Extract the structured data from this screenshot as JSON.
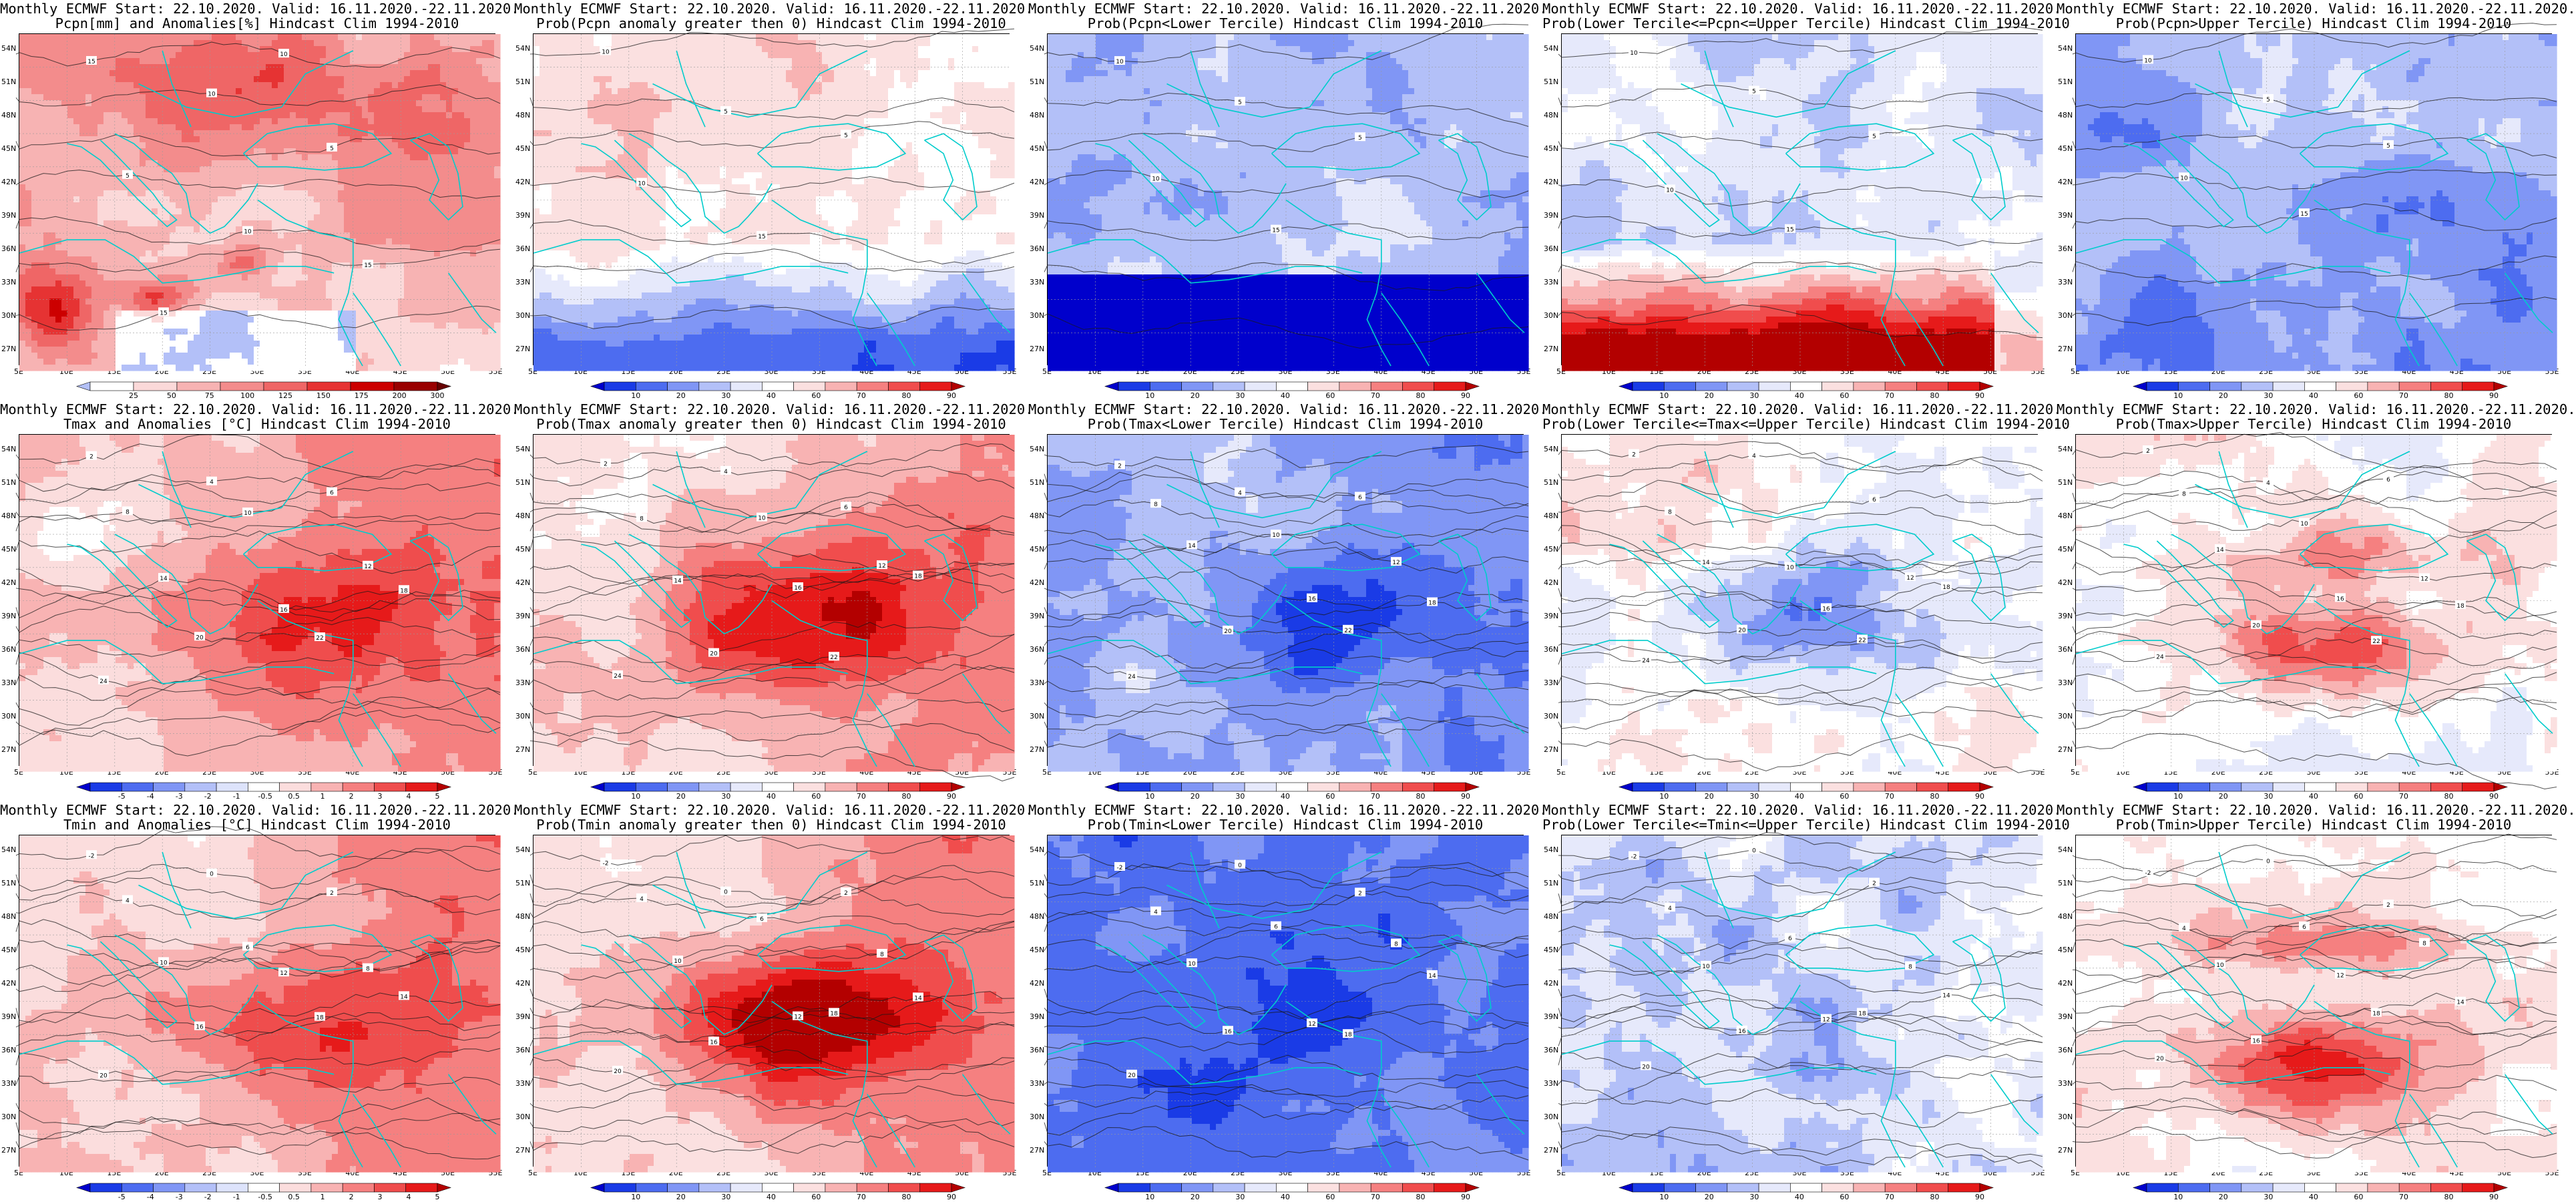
{
  "panels": [
    {
      "line1": "Monthly ECMWF Start: 22.10.2020. Valid: 16.11.2020.-22.11.2020.",
      "line2": "Pcpn[mm] and Anomalies[%] Hindcast Clim 1994-2010",
      "scale": "anom_pcpn",
      "extremes": "wet",
      "style": "pcpn_anom",
      "contour_labels": [
        "15",
        "10",
        "5",
        "5",
        "10",
        "15",
        "15",
        "10"
      ]
    },
    {
      "line1": "Monthly ECMWF Start: 22.10.2020. Valid: 16.11.2020.-22.11.2020.",
      "line2": "Prob(Pcpn anomaly greater then 0) Hindcast Clim 1994-2010",
      "scale": "prob",
      "style": "prob_pcpn_gt0",
      "contour_labels": [
        "10",
        "5",
        "5",
        "10",
        "15"
      ]
    },
    {
      "line1": "Monthly ECMWF Start: 22.10.2020. Valid: 16.11.2020.-22.11.2020.",
      "line2": "Prob(Pcpn<Lower Tercile) Hindcast Clim 1994-2010",
      "scale": "prob",
      "style": "prob_pcpn_lower",
      "contour_labels": [
        "10",
        "5",
        "5",
        "10",
        "15"
      ]
    },
    {
      "line1": "Monthly ECMWF Start: 22.10.2020. Valid: 16.11.2020.-22.11.2020.",
      "line2": "Prob(Lower Tercile<=Pcpn<=Upper Tercile) Hindcast Clim 1994-2010",
      "scale": "prob",
      "style": "prob_pcpn_mid",
      "contour_labels": [
        "10",
        "5",
        "5",
        "10",
        "15"
      ]
    },
    {
      "line1": "Monthly ECMWF Start: 22.10.2020. Valid: 16.11.2020.-22.11.2020.",
      "line2": "Prob(Pcpn>Upper Tercile) Hindcast Clim 1994-2010",
      "scale": "prob",
      "style": "prob_pcpn_upper",
      "contour_labels": [
        "10",
        "5",
        "5",
        "10",
        "15"
      ]
    },
    {
      "line1": "Monthly ECMWF Start: 22.10.2020. Valid: 16.11.2020.-22.11.2020.",
      "line2": "Tmax and Anomalies [°C] Hindcast Clim 1994-2010",
      "scale": "anom_temp",
      "style": "tmax_anom",
      "contour_labels": [
        "2",
        "4",
        "6",
        "8",
        "10",
        "12",
        "14",
        "16",
        "18",
        "20",
        "22",
        "24"
      ]
    },
    {
      "line1": "Monthly ECMWF Start: 22.10.2020. Valid: 16.11.2020.-22.11.2020.",
      "line2": "Prob(Tmax anomaly greater then 0) Hindcast Clim 1994-2010",
      "scale": "prob",
      "style": "prob_tmax_gt0",
      "contour_labels": [
        "2",
        "4",
        "6",
        "8",
        "10",
        "12",
        "14",
        "16",
        "18",
        "20",
        "22",
        "24"
      ]
    },
    {
      "line1": "Monthly ECMWF Start: 22.10.2020. Valid: 16.11.2020.-22.11.2020.",
      "line2": "Prob(Tmax<Lower Tercile) Hindcast Clim 1994-2010",
      "scale": "prob",
      "style": "prob_tmax_lower",
      "contour_labels": [
        "2",
        "4",
        "6",
        "8",
        "10",
        "12",
        "14",
        "16",
        "18",
        "20",
        "22",
        "24"
      ]
    },
    {
      "line1": "Monthly ECMWF Start: 22.10.2020. Valid: 16.11.2020.-22.11.2020.",
      "line2": "Prob(Lower Tercile<=Tmax<=Upper Tercile) Hindcast Clim 1994-2010",
      "scale": "prob",
      "style": "prob_tmax_mid",
      "contour_labels": [
        "2",
        "4",
        "6",
        "8",
        "10",
        "12",
        "14",
        "16",
        "18",
        "20",
        "22",
        "24"
      ]
    },
    {
      "line1": "Monthly ECMWF Start: 22.10.2020. Valid: 16.11.2020.-22.11.2020.",
      "line2": "Prob(Tmax>Upper Tercile) Hindcast Clim 1994-2010",
      "scale": "prob",
      "style": "prob_tmax_upper",
      "contour_labels": [
        "2",
        "4",
        "6",
        "8",
        "10",
        "12",
        "14",
        "16",
        "18",
        "20",
        "22",
        "24"
      ]
    },
    {
      "line1": "Monthly ECMWF Start: 22.10.2020. Valid: 16.11.2020.-22.11.2020.",
      "line2": "Tmin and Anomalies [°C] Hindcast Clim 1994-2010",
      "scale": "anom_temp",
      "style": "tmin_anom",
      "contour_labels": [
        "-2",
        "0",
        "2",
        "4",
        "6",
        "8",
        "10",
        "12",
        "14",
        "16",
        "18",
        "20"
      ]
    },
    {
      "line1": "Monthly ECMWF Start: 22.10.2020. Valid: 16.11.2020.-22.11.2020.",
      "line2": "Prob(Tmin anomaly greater then 0) Hindcast Clim 1994-2010",
      "scale": "prob",
      "style": "prob_tmin_gt0",
      "contour_labels": [
        "-2",
        "0",
        "2",
        "4",
        "6",
        "8",
        "10",
        "12",
        "14",
        "16",
        "18",
        "20"
      ]
    },
    {
      "line1": "Monthly ECMWF Start: 22.10.2020. Valid: 16.11.2020.-22.11.2020.",
      "line2": "Prob(Tmin<Lower Tercile) Hindcast Clim 1994-2010",
      "scale": "prob",
      "style": "prob_tmin_lower",
      "contour_labels": [
        "-2",
        "0",
        "2",
        "4",
        "6",
        "8",
        "10",
        "12",
        "14",
        "16",
        "18",
        "20"
      ]
    },
    {
      "line1": "Monthly ECMWF Start: 22.10.2020. Valid: 16.11.2020.-22.11.2020.",
      "line2": "Prob(Lower Tercile<=Tmin<=Upper Tercile) Hindcast Clim 1994-2010",
      "scale": "prob",
      "style": "prob_tmin_mid",
      "contour_labels": [
        "-2",
        "0",
        "2",
        "4",
        "6",
        "8",
        "10",
        "12",
        "14",
        "16",
        "18",
        "20"
      ]
    },
    {
      "line1": "Monthly ECMWF Start: 22.10.2020. Valid: 16.11.2020.-22.11.2020.",
      "line2": "Prob(Tmin>Upper Tercile) Hindcast Clim 1994-2010",
      "scale": "prob",
      "style": "prob_tmin_upper",
      "contour_labels": [
        "-2",
        "0",
        "2",
        "4",
        "6",
        "8",
        "10",
        "12",
        "14",
        "16",
        "18",
        "20"
      ]
    }
  ],
  "lat_labels": [
    "54N",
    "51N",
    "48N",
    "45N",
    "42N",
    "39N",
    "36N",
    "33N",
    "30N",
    "27N"
  ],
  "lon_labels": [
    "5E",
    "10E",
    "15E",
    "20E",
    "25E",
    "30E",
    "35E",
    "40E",
    "45E",
    "50E",
    "55E"
  ],
  "scales": {
    "prob": {
      "ticks": [
        "10",
        "20",
        "30",
        "40",
        "60",
        "70",
        "80",
        "90"
      ],
      "colors": [
        "#0000cc",
        "#1a3be6",
        "#4d6cf0",
        "#8096f5",
        "#b3c0f8",
        "#e6e9fb",
        "#ffffff",
        "#fbe0e0",
        "#f8b3b3",
        "#f58080",
        "#f04d4d",
        "#e61a1a",
        "#b30000"
      ]
    },
    "anom_pcpn": {
      "ticks": [
        "25",
        "50",
        "75",
        "100",
        "125",
        "150",
        "175",
        "200",
        "300"
      ],
      "colors": [
        "#b3c0f8",
        "#ffffff",
        "#fbd9d9",
        "#f7b3b3",
        "#f38c8c",
        "#ef6666",
        "#e63333",
        "#cc0000",
        "#990000",
        "#660000"
      ]
    },
    "anom_temp": {
      "ticks": [
        "-5",
        "-4",
        "-3",
        "-2",
        "-1",
        "-0.5",
        "0.5",
        "1",
        "2",
        "3",
        "4",
        "5"
      ],
      "colors": [
        "#0000cc",
        "#1a3be6",
        "#4d6cf0",
        "#8096f5",
        "#b3c0f8",
        "#dde3fb",
        "#ffffff",
        "#fbdddd",
        "#f8b3b3",
        "#f58080",
        "#ef4d4d",
        "#e61a1a",
        "#b30000"
      ]
    }
  },
  "colors": {
    "coast": "#00cccc",
    "contour": "#1a1a1a",
    "grid": "#9a9a9a"
  }
}
